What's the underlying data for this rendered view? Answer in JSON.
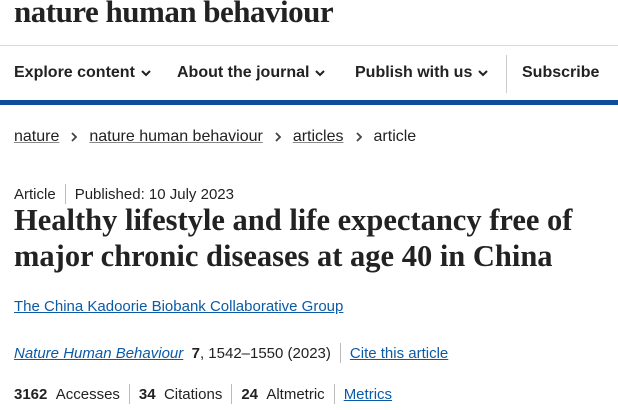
{
  "header": {
    "logo": "nature human behaviour",
    "nav": [
      "Explore content",
      "About the journal",
      "Publish with us",
      "Subscribe"
    ]
  },
  "breadcrumb": [
    "nature",
    "nature human behaviour",
    "articles",
    "article"
  ],
  "article": {
    "type": "Article",
    "published": "Published: 10 July 2023",
    "title_lines": [
      "Healthy lifestyle and life expectancy free of",
      "major chronic diseases at age 40 in China"
    ],
    "author": "The China Kadoorie Biobank Collaborative Group",
    "journal": "Nature Human Behaviour",
    "volume": "7",
    "pages": ", 1542–1550 (2023)",
    "cite_link": "Cite this article",
    "metrics": [
      {
        "value": 3162,
        "label": "Accesses"
      },
      {
        "value": 34,
        "label": "Citations"
      },
      {
        "value": 24,
        "label": "Altmetric"
      }
    ],
    "metrics_link": "Metrics"
  }
}
